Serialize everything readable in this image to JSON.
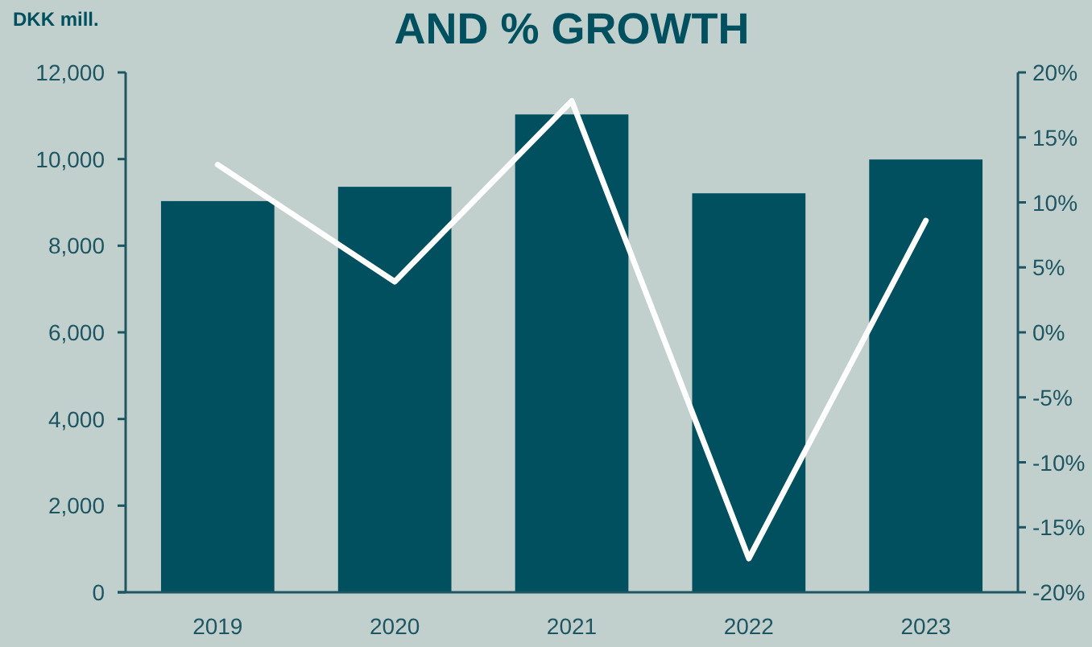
{
  "chart_data": {
    "type": "bar",
    "title": "AND % GROWTH",
    "ylabel": "DKK mill.",
    "categories": [
      "2019",
      "2020",
      "2021",
      "2022",
      "2023"
    ],
    "series": [
      {
        "color": "#00505f",
        "values": [
          9030,
          9360,
          11030,
          9210,
          9990
        ]
      },
      {
        "type": "line",
        "axis": "y2",
        "color": "#ffffff",
        "values": [
          12.9,
          3.9,
          17.8,
          -17.4,
          8.6
        ]
      }
    ],
    "ylim": [
      0,
      12000
    ],
    "yticks": [
      0,
      {
        "value": 2000,
        "label": "2,000"
      },
      {
        "value": 4000,
        "label": "4,000"
      },
      {
        "value": 6000,
        "label": "6,000"
      },
      {
        "value": 8000,
        "label": "8,000"
      },
      {
        "value": 10000,
        "label": "10,000"
      },
      {
        "value": 12000,
        "label": "12,000"
      }
    ],
    "y2lim": [
      -20,
      20
    ],
    "y2ticks": [
      {
        "value": -20,
        "label": "-20%"
      },
      {
        "value": -15,
        "label": "-15%"
      },
      {
        "value": -10,
        "label": "-10%"
      },
      {
        "value": -5,
        "label": "-5%"
      },
      {
        "value": 0,
        "label": "0%"
      },
      {
        "value": 5,
        "label": "5%"
      },
      {
        "value": 10,
        "label": "10%"
      },
      {
        "value": 15,
        "label": "15%"
      },
      {
        "value": 20,
        "label": "20%"
      }
    ],
    "grid": false,
    "marker": "none",
    "line_style": "solid"
  }
}
